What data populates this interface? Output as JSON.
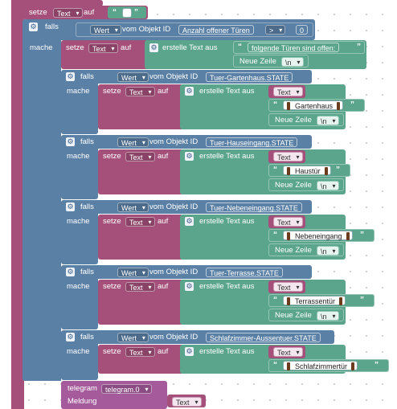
{
  "workspace": {
    "top_label": "",
    "set_label": "setze",
    "set_var": "Text",
    "set_to": "auf",
    "quote_open": "“",
    "quote_close": "”"
  },
  "main_if": {
    "if_label": "falls",
    "value_dd": "Wert",
    "object_label": "vom Objekt ID",
    "object_id": "Anzahl offener Türen",
    "op": ">",
    "number": "0",
    "do_label": "mache",
    "set_label": "setze",
    "var": "Text",
    "to": "auf",
    "create_text": "erstelle Text aus",
    "text1": "folgende Türen sind offen:",
    "newline_label": "Neue Zeile",
    "newline_dd": "\\n"
  },
  "doors": [
    {
      "object_id": "Tuer-Gartenhaus.STATE",
      "name": "Gartenhaus"
    },
    {
      "object_id": "Tuer-Hauseingang.STATE",
      "name": "Haustür"
    },
    {
      "object_id": "Tuer-Nebeneingang.STATE",
      "name": "Nebeneingang"
    },
    {
      "object_id": "Tuer-Terrasse.STATE",
      "name": "Terrassentür"
    },
    {
      "object_id": "Schlafzimmer-Aussentuer.STATE",
      "name": "Schlafzimmertür"
    }
  ],
  "telegram": {
    "label": "telegram",
    "instance": "telegram.0",
    "message_label": "Meldung",
    "message_var": "Text"
  },
  "colors": {
    "variable": "#a5507a",
    "logic": "#5b80a5",
    "text": "#5ba58c",
    "telegram": "#a55b9b"
  },
  "icons": {
    "gear": "gear-icon",
    "dropdown": "chevron-down-icon"
  }
}
